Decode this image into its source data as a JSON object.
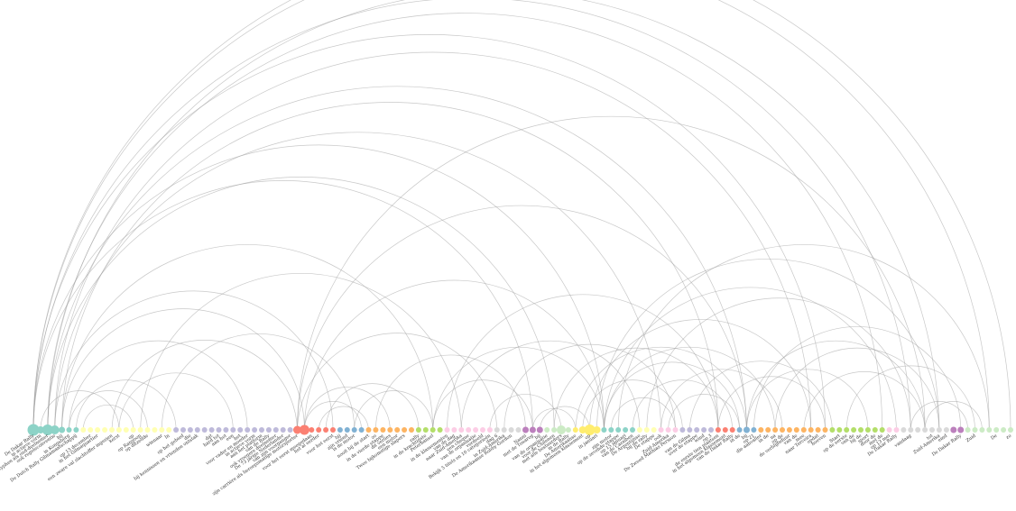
{
  "diagram": {
    "type": "arc-diagram",
    "palette": [
      "#8dd3c7",
      "#ffffb3",
      "#bebada",
      "#fb8072",
      "#80b1d3",
      "#fdb462",
      "#b3de69",
      "#fccde5",
      "#d9d9d9",
      "#bc80bd",
      "#ccebc5",
      "#ffed6f"
    ],
    "arc_color": "#9a9a9a",
    "nodes": [
      {
        "label": "De Dakar Rally",
        "group": 0,
        "r": 6.5
      },
      {
        "label": "in actieve vorm",
        "group": 0,
        "r": 4
      },
      {
        "label": "typhen als oud-deelnemer",
        "group": 0,
        "r": 6
      },
      {
        "label": "ook regeleconventie",
        "group": 0,
        "r": 5
      },
      {
        "label": "hij",
        "group": 0,
        "r": 3.5
      },
      {
        "label": "in Kongsberg",
        "group": 0,
        "r": 3
      },
      {
        "label": "De Dutch Rally Gilmamaatschappij",
        "group": 0,
        "r": 3
      },
      {
        "label": "",
        "group": 1,
        "r": 3
      },
      {
        "label": "op 13 december",
        "group": 1,
        "r": 3
      },
      {
        "label": "in het Gilmaquartier",
        "group": 1,
        "r": 3
      },
      {
        "label": "",
        "group": 1,
        "r": 3
      },
      {
        "label": "een zware val slachtoffer ingezien",
        "group": 1,
        "r": 3
      },
      {
        "label": "kerst",
        "group": 1,
        "r": 3
      },
      {
        "label": "",
        "group": 1,
        "r": 3
      },
      {
        "label": "op",
        "group": 1,
        "r": 3
      },
      {
        "label": "op Rangoon",
        "group": 1,
        "r": 3
      },
      {
        "label": "op ditzelfde",
        "group": 1,
        "r": 3
      },
      {
        "label": "",
        "group": 1,
        "r": 3
      },
      {
        "label": "winnaar",
        "group": 1,
        "r": 3
      },
      {
        "label": "In",
        "group": 1,
        "r": 3
      },
      {
        "label": "",
        "group": 2,
        "r": 3
      },
      {
        "label": "op het gebied",
        "group": 2,
        "r": 3
      },
      {
        "label": "die",
        "group": 2,
        "r": 3
      },
      {
        "label": "bij kennissen en vrienden ontstak",
        "group": 2,
        "r": 3
      },
      {
        "label": "",
        "group": 2,
        "r": 3
      },
      {
        "label": "dat",
        "group": 2,
        "r": 3
      },
      {
        "label": "hard tot",
        "group": 2,
        "r": 3
      },
      {
        "label": "aan het",
        "group": 2,
        "r": 3
      },
      {
        "label": "een",
        "group": 2,
        "r": 3
      },
      {
        "label": "het",
        "group": 2,
        "r": 3
      },
      {
        "label": "voor vader en moeder",
        "group": 2,
        "r": 3
      },
      {
        "label": "in actieve vorm",
        "group": 2,
        "r": 3
      },
      {
        "label": "aan het platform",
        "group": 2,
        "r": 3
      },
      {
        "label": "van de Rally",
        "group": 2,
        "r": 3
      },
      {
        "label": "ook vroegere deelnemer",
        "group": 2,
        "r": 3
      },
      {
        "label": "De 73 jarige Nederlander",
        "group": 2,
        "r": 3
      },
      {
        "label": "van zijn voorganger",
        "group": 2,
        "r": 3
      },
      {
        "label": "zijn carrière als beroepsmatige motorsporter",
        "group": 3,
        "r": 4.5
      },
      {
        "label": "",
        "group": 3,
        "r": 5.5
      },
      {
        "label": "voor het eerst meegedaan",
        "group": 3,
        "r": 3
      },
      {
        "label": "het al eerder",
        "group": 3,
        "r": 3
      },
      {
        "label": "",
        "group": 3,
        "r": 3
      },
      {
        "label": "voor het eerst",
        "group": 3,
        "r": 3
      },
      {
        "label": "bij",
        "group": 4,
        "r": 3
      },
      {
        "label": "zijn vriend",
        "group": 4,
        "r": 3
      },
      {
        "label": "is de motor",
        "group": 4,
        "r": 3
      },
      {
        "label": "",
        "group": 4,
        "r": 3
      },
      {
        "label": "nooit bij de start",
        "group": 5,
        "r": 3
      },
      {
        "label": "zo",
        "group": 5,
        "r": 3
      },
      {
        "label": "in de vierde etappe",
        "group": 5,
        "r": 3
      },
      {
        "label": "dit verlies",
        "group": 5,
        "r": 3
      },
      {
        "label": "een motor",
        "group": 5,
        "r": 3
      },
      {
        "label": "Twee bijkomstige slapers",
        "group": 5,
        "r": 3
      },
      {
        "label": "",
        "group": 5,
        "r": 3
      },
      {
        "label": "rally",
        "group": 6,
        "r": 3
      },
      {
        "label": "in de krachtigste",
        "group": 6,
        "r": 3
      },
      {
        "label": "Peterhansel",
        "group": 6,
        "r": 3
      },
      {
        "label": "",
        "group": 6,
        "r": 3
      },
      {
        "label": "in de klassementen",
        "group": 7,
        "r": 3
      },
      {
        "label": "van de dag",
        "group": 7,
        "r": 3
      },
      {
        "label": "naar Zuid-Amerika",
        "group": 7,
        "r": 3
      },
      {
        "label": "een cheque",
        "group": 7,
        "r": 3
      },
      {
        "label": "van de organisatie",
        "group": 7,
        "r": 3
      },
      {
        "label": "verdeeld",
        "group": 7,
        "r": 3
      },
      {
        "label": "Bekijk 5 titels en 10 categorieën",
        "group": 7,
        "r": 3
      },
      {
        "label": "dag 6",
        "group": 8,
        "r": 3
      },
      {
        "label": "in Zuid-Amerika",
        "group": 8,
        "r": 3
      },
      {
        "label": "De Amerikaanse Robby Gordon",
        "group": 8,
        "r": 3
      },
      {
        "label": "",
        "group": 8,
        "r": 3
      },
      {
        "label": "Nanni",
        "group": 9,
        "r": 3.5
      },
      {
        "label": "met de Touareg",
        "group": 9,
        "r": 3.5
      },
      {
        "label": "bij",
        "group": 9,
        "r": 3.5
      },
      {
        "label": "van de organisatie",
        "group": 10,
        "r": 3
      },
      {
        "label": "voor de Chilenen",
        "group": 10,
        "r": 3
      },
      {
        "label": "met alle bestuurders",
        "group": 10,
        "r": 5
      },
      {
        "label": "in de Rally",
        "group": 10,
        "r": 3
      },
      {
        "label": "De Amerikaanse",
        "group": 11,
        "r": 3
      },
      {
        "label": "in het algemeen klassement",
        "group": 11,
        "r": 4
      },
      {
        "label": "op",
        "group": 11,
        "r": 6
      },
      {
        "label": "in januari",
        "group": 11,
        "r": 4
      },
      {
        "label": "",
        "group": 0,
        "r": 3
      },
      {
        "label": "zijn motor",
        "group": 0,
        "r": 3
      },
      {
        "label": "op de zevende etappe",
        "group": 0,
        "r": 3
      },
      {
        "label": "op 15 januari",
        "group": 0,
        "r": 3
      },
      {
        "label": "van de Caraïben",
        "group": 0,
        "r": 3
      },
      {
        "label": "De Argentijnse",
        "group": 1,
        "r": 3
      },
      {
        "label": "bij de rally",
        "group": 1,
        "r": 3
      },
      {
        "label": "De etappe",
        "group": 1,
        "r": 3
      },
      {
        "label": "ook",
        "group": 7,
        "r": 3
      },
      {
        "label": "Zuid-Amerika",
        "group": 7,
        "r": 3
      },
      {
        "label": "De Zweed Mathias Persson",
        "group": 7,
        "r": 3
      },
      {
        "label": "",
        "group": 2,
        "r": 3
      },
      {
        "label": "van de Gilma",
        "group": 2,
        "r": 3
      },
      {
        "label": "over de etappe",
        "group": 2,
        "r": 3
      },
      {
        "label": "wind",
        "group": 2,
        "r": 3
      },
      {
        "label": "op 3",
        "group": 2,
        "r": 3
      },
      {
        "label": "de eerste tien plaatsen",
        "group": 3,
        "r": 3
      },
      {
        "label": "in het algemeen klassement",
        "group": 3,
        "r": 3
      },
      {
        "label": "van de Dakar Rally",
        "group": 3,
        "r": 3
      },
      {
        "label": "in de",
        "group": 4,
        "r": 3
      },
      {
        "label": "bij",
        "group": 4,
        "r": 3.5
      },
      {
        "label": "op 21",
        "group": 4,
        "r": 3
      },
      {
        "label": "die aanvaller",
        "group": 5,
        "r": 3
      },
      {
        "label": "in de",
        "group": 5,
        "r": 3
      },
      {
        "label": "na",
        "group": 5,
        "r": 3
      },
      {
        "label": "op de",
        "group": 5,
        "r": 3
      },
      {
        "label": "de verblijfsduur",
        "group": 5,
        "r": 3
      },
      {
        "label": "van de",
        "group": 5,
        "r": 3
      },
      {
        "label": "mee",
        "group": 5,
        "r": 3
      },
      {
        "label": "naar Terceira",
        "group": 5,
        "r": 3
      },
      {
        "label": "opdat",
        "group": 5,
        "r": 3
      },
      {
        "label": "hoeven",
        "group": 5,
        "r": 3
      },
      {
        "label": "",
        "group": 6,
        "r": 3
      },
      {
        "label": "Start",
        "group": 6,
        "r": 3
      },
      {
        "label": "op de eerste",
        "group": 6,
        "r": 3
      },
      {
        "label": "van de",
        "group": 6,
        "r": 3
      },
      {
        "label": "bij de",
        "group": 6,
        "r": 3
      },
      {
        "label": "sport",
        "group": 6,
        "r": 3
      },
      {
        "label": "door de",
        "group": 6,
        "r": 3
      },
      {
        "label": "met de",
        "group": 6,
        "r": 3
      },
      {
        "label": "op 13 mei",
        "group": 7,
        "r": 3
      },
      {
        "label": "De Dakar Rally",
        "group": 7,
        "r": 3
      },
      {
        "label": "",
        "group": 8,
        "r": 3
      },
      {
        "label": "vandaag",
        "group": 8,
        "r": 3
      },
      {
        "label": "",
        "group": 8,
        "r": 3
      },
      {
        "label": "",
        "group": 8,
        "r": 3
      },
      {
        "label": "tot",
        "group": 8,
        "r": 3
      },
      {
        "label": "Zuid-Amerika",
        "group": 8,
        "r": 3
      },
      {
        "label": "eind",
        "group": 8,
        "r": 3
      },
      {
        "label": "",
        "group": 9,
        "r": 3.5
      },
      {
        "label": "De Dakar Rally",
        "group": 9,
        "r": 3.5
      },
      {
        "label": "",
        "group": 10,
        "r": 3
      },
      {
        "label": "Zuid",
        "group": 10,
        "r": 3
      },
      {
        "label": "",
        "group": 10,
        "r": 3
      },
      {
        "label": "",
        "group": 10,
        "r": 3
      },
      {
        "label": "De",
        "group": 10,
        "r": 3
      },
      {
        "label": "",
        "group": 10,
        "r": 3
      },
      {
        "label": "zo",
        "group": 10,
        "r": 3
      }
    ],
    "links": [
      [
        0,
        137
      ],
      [
        0,
        134
      ],
      [
        0,
        123
      ],
      [
        0,
        111
      ],
      [
        0,
        80
      ],
      [
        0,
        70
      ],
      [
        2,
        127
      ],
      [
        2,
        119
      ],
      [
        2,
        100
      ],
      [
        2,
        73
      ],
      [
        3,
        109
      ],
      [
        3,
        88
      ],
      [
        3,
        42
      ],
      [
        4,
        96
      ],
      [
        4,
        56
      ],
      [
        4,
        38
      ],
      [
        5,
        30
      ],
      [
        5,
        16
      ],
      [
        6,
        20
      ],
      [
        7,
        14
      ],
      [
        1,
        12
      ],
      [
        11,
        37
      ],
      [
        12,
        28
      ],
      [
        15,
        60
      ],
      [
        18,
        45
      ],
      [
        37,
        65
      ],
      [
        37,
        100
      ],
      [
        37,
        125
      ],
      [
        38,
        80
      ],
      [
        38,
        50
      ],
      [
        38,
        46
      ],
      [
        40,
        47
      ],
      [
        41,
        54
      ],
      [
        45,
        56
      ],
      [
        48,
        69
      ],
      [
        56,
        80
      ],
      [
        56,
        70
      ],
      [
        58,
        96
      ],
      [
        60,
        85
      ],
      [
        64,
        74
      ],
      [
        66,
        90
      ],
      [
        70,
        76
      ],
      [
        71,
        78
      ],
      [
        73,
        96
      ],
      [
        76,
        100
      ],
      [
        77,
        91
      ],
      [
        78,
        109
      ],
      [
        79,
        127
      ],
      [
        80,
        121
      ],
      [
        80,
        99
      ],
      [
        80,
        104
      ],
      [
        81,
        90
      ],
      [
        82,
        134
      ],
      [
        84,
        98
      ],
      [
        86,
        123
      ],
      [
        88,
        105
      ],
      [
        89,
        99
      ],
      [
        92,
        112
      ],
      [
        96,
        111
      ],
      [
        100,
        125
      ],
      [
        100,
        117
      ],
      [
        101,
        130
      ],
      [
        104,
        127
      ],
      [
        108,
        125
      ],
      [
        114,
        132
      ],
      [
        123,
        131
      ],
      [
        125,
        133
      ]
    ]
  }
}
